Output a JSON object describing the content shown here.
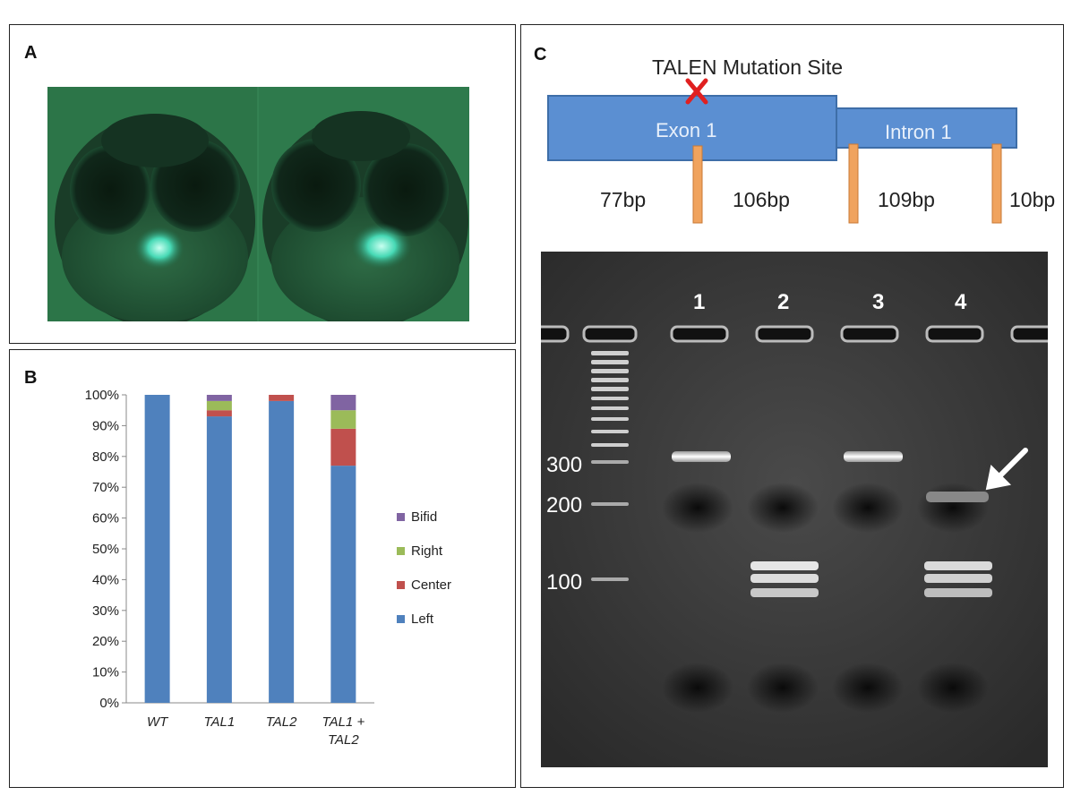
{
  "panels": {
    "a": {
      "label": "A"
    },
    "b": {
      "label": "B"
    },
    "c": {
      "label": "C"
    }
  },
  "colors": {
    "left": "#4f81bd",
    "center": "#c0504d",
    "right": "#9bbb59",
    "bifid": "#8064a2",
    "exon": "#5b8fd2",
    "marker": "#f0a35e",
    "mutation": "#e02020"
  },
  "chart_data": {
    "type": "bar",
    "stacked": true,
    "categories": [
      "WT",
      "TAL1",
      "TAL2",
      "TAL1 + TAL2"
    ],
    "series": [
      {
        "name": "Left",
        "values": [
          100,
          93,
          98,
          77
        ]
      },
      {
        "name": "Center",
        "values": [
          0,
          2,
          2,
          12
        ]
      },
      {
        "name": "Right",
        "values": [
          0,
          3,
          0,
          6
        ]
      },
      {
        "name": "Bifid",
        "values": [
          0,
          2,
          0,
          5
        ]
      }
    ],
    "yticks": [
      "0%",
      "10%",
      "20%",
      "30%",
      "40%",
      "50%",
      "60%",
      "70%",
      "80%",
      "90%",
      "100%"
    ],
    "ylim": [
      0,
      100
    ],
    "legend": [
      "Bifid",
      "Right",
      "Center",
      "Left"
    ],
    "legend_position": "right",
    "grid": false
  },
  "gene_diagram": {
    "title": "TALEN Mutation Site",
    "exon_label": "Exon 1",
    "intron_label": "Intron 1",
    "fragments": [
      "77bp",
      "106bp",
      "109bp",
      "10bp"
    ]
  },
  "gel": {
    "lanes": [
      "1",
      "2",
      "3",
      "4"
    ],
    "ladder_labels": [
      "300",
      "200",
      "100"
    ]
  }
}
